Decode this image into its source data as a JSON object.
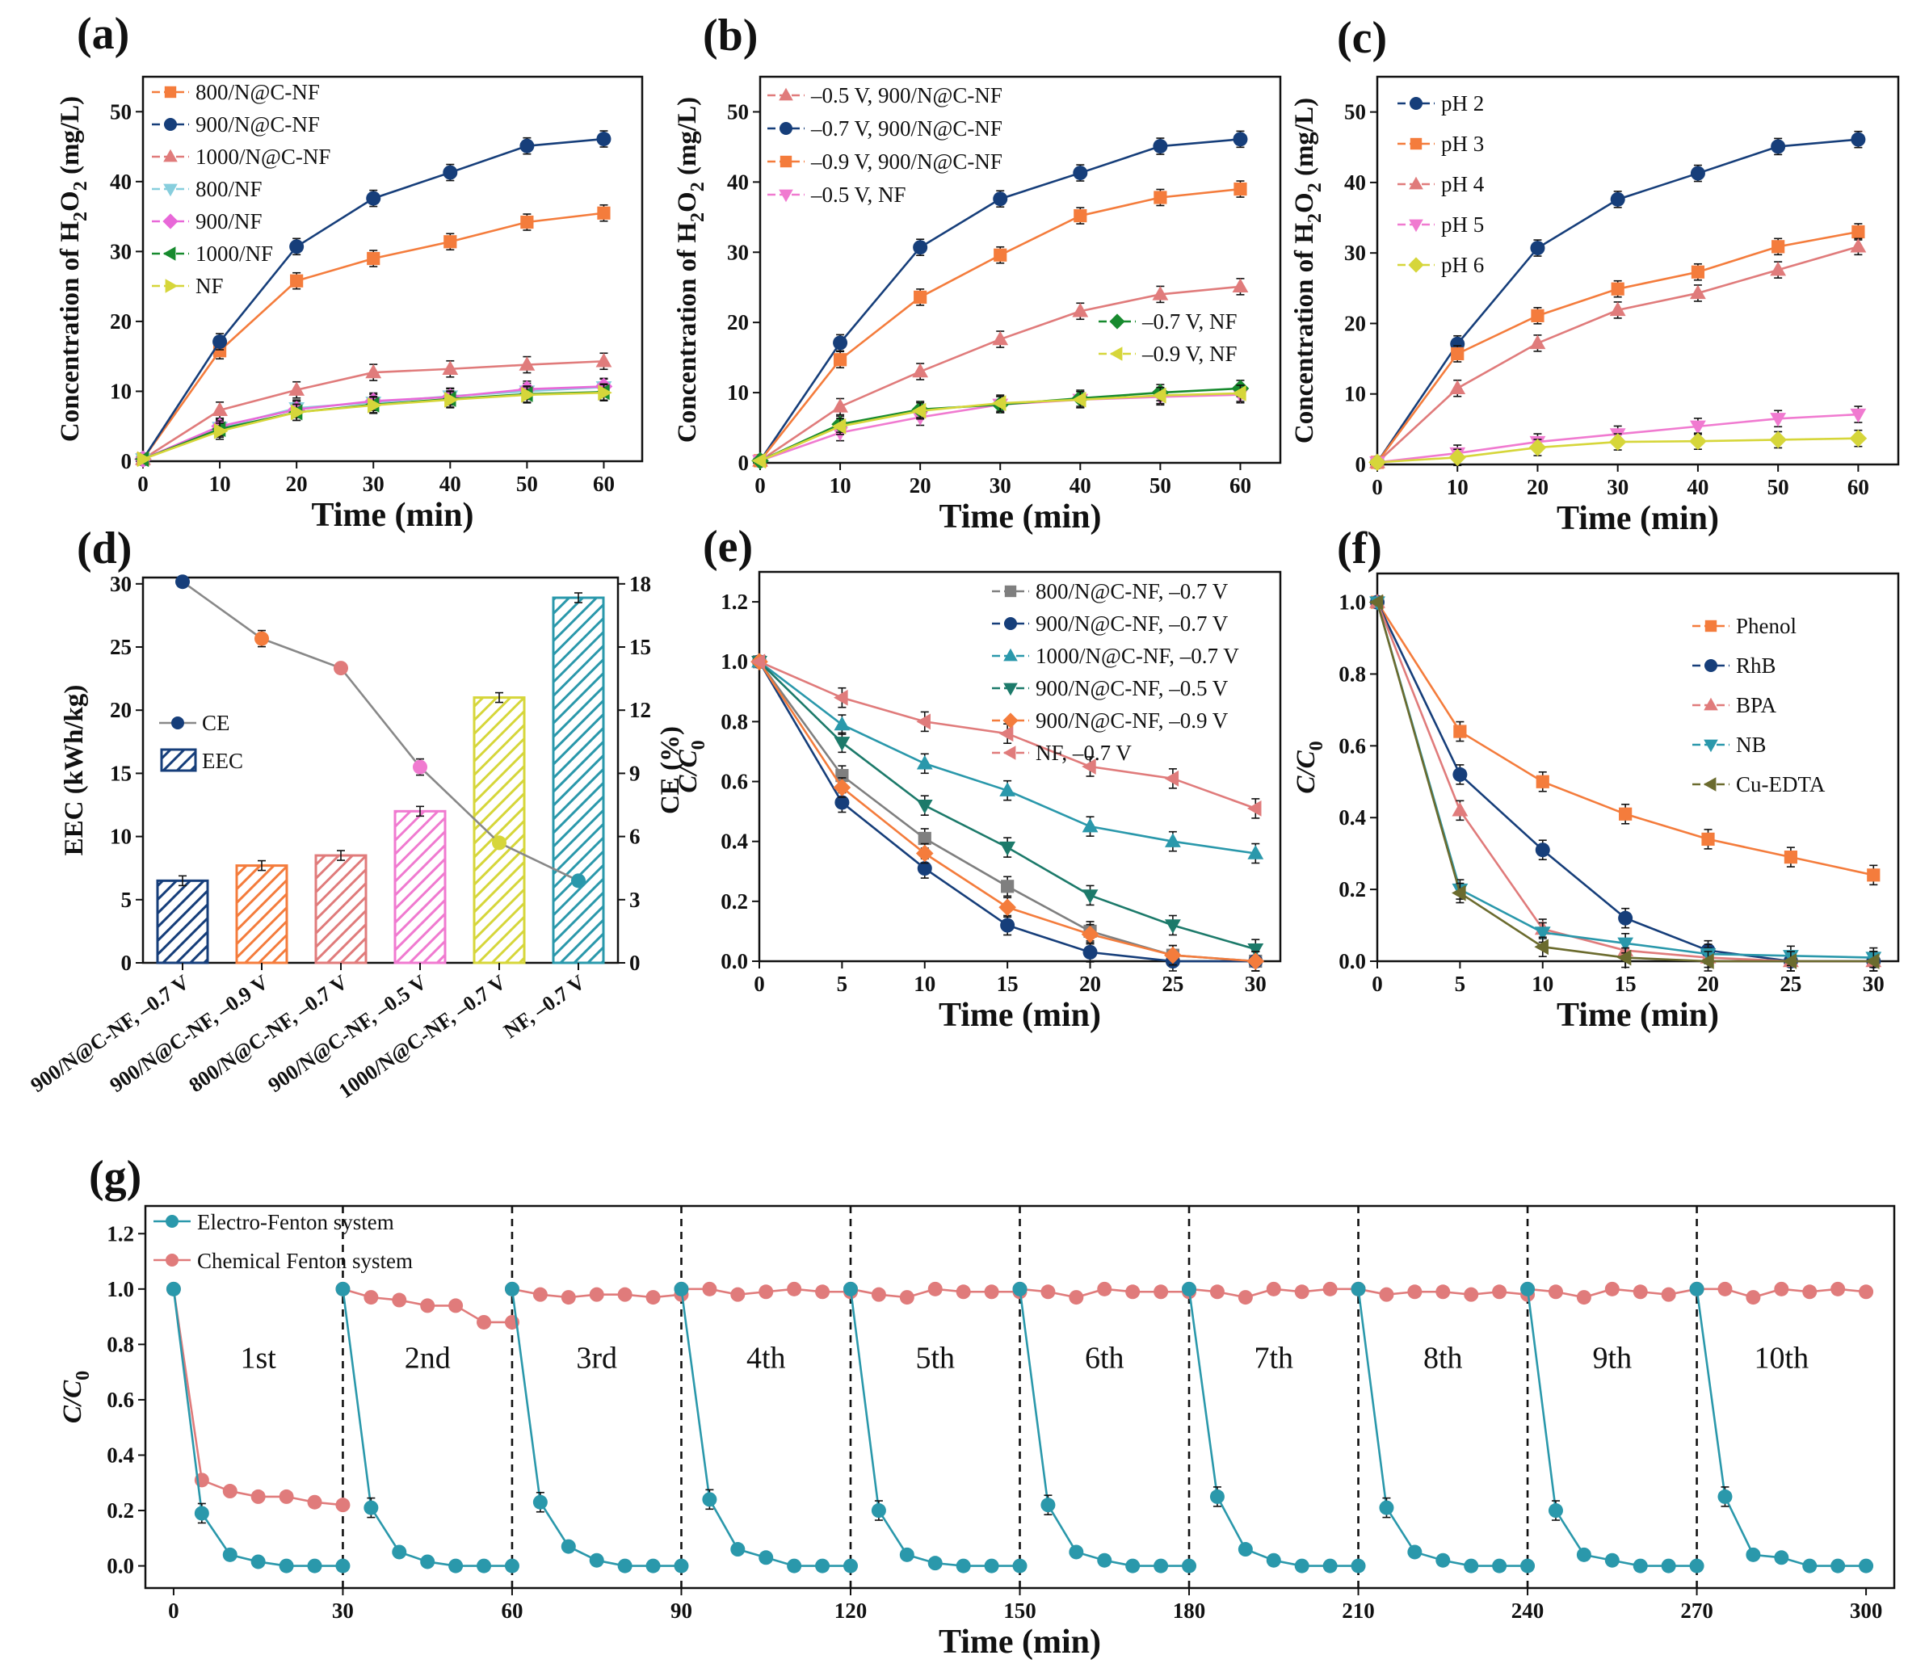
{
  "chart_data": [
    {
      "panel": "(a)",
      "type": "line",
      "xlabel": "Time (min)",
      "ylabel": "Concentration of H2O2 (mg/L)",
      "xlim": [
        0,
        65
      ],
      "ylim": [
        0,
        55
      ],
      "xticks": [
        0,
        10,
        20,
        30,
        40,
        50,
        60
      ],
      "yticks": [
        0,
        10,
        20,
        30,
        40,
        50
      ],
      "x": [
        0,
        10,
        20,
        30,
        40,
        50,
        60
      ],
      "legend_position": "top-left",
      "series": [
        {
          "name": "800/N@C-NF",
          "color": "#f47c3c",
          "marker": "square",
          "values": [
            0.3,
            15.8,
            25.8,
            29.0,
            31.4,
            34.2,
            35.5
          ]
        },
        {
          "name": "900/N@C-NF",
          "color": "#163e7a",
          "marker": "circle",
          "values": [
            0.3,
            17.1,
            30.7,
            37.6,
            41.3,
            45.1,
            46.1
          ]
        },
        {
          "name": "1000/N@C-NF",
          "color": "#e07b7b",
          "marker": "triangle-up",
          "values": [
            0.3,
            7.3,
            10.2,
            12.7,
            13.2,
            13.8,
            14.3
          ]
        },
        {
          "name": "800/NF",
          "color": "#87cedd",
          "marker": "triangle-down",
          "values": [
            0.3,
            4.8,
            7.6,
            8.4,
            9.3,
            10.0,
            10.6
          ]
        },
        {
          "name": "900/NF",
          "color": "#e868d8",
          "marker": "diamond",
          "values": [
            0.3,
            5.0,
            7.4,
            8.6,
            9.2,
            10.3,
            10.7
          ]
        },
        {
          "name": "1000/NF",
          "color": "#178a2e",
          "marker": "triangle-left",
          "values": [
            0.3,
            4.6,
            7.0,
            8.1,
            8.9,
            9.6,
            9.9
          ]
        },
        {
          "name": "NF",
          "color": "#d6d63a",
          "marker": "triangle-right",
          "values": [
            0.3,
            4.3,
            7.0,
            8.0,
            8.8,
            9.5,
            9.8
          ]
        }
      ]
    },
    {
      "panel": "(b)",
      "type": "line",
      "xlabel": "Time (min)",
      "ylabel": "Concentration of H2O2 (mg/L)",
      "xlim": [
        0,
        65
      ],
      "ylim": [
        0,
        55
      ],
      "xticks": [
        0,
        10,
        20,
        30,
        40,
        50,
        60
      ],
      "yticks": [
        0,
        10,
        20,
        30,
        40,
        50
      ],
      "x": [
        0,
        10,
        20,
        30,
        40,
        50,
        60
      ],
      "legend_position": "top-left",
      "series": [
        {
          "name": "–0.5 V, 900/N@C-NF",
          "color": "#e07b7b",
          "marker": "triangle-up",
          "values": [
            0.3,
            8.0,
            13.0,
            17.6,
            21.6,
            24.0,
            25.1
          ]
        },
        {
          "name": "–0.7 V, 900/N@C-NF",
          "color": "#163e7a",
          "marker": "circle",
          "values": [
            0.3,
            17.1,
            30.7,
            37.6,
            41.3,
            45.1,
            46.1
          ]
        },
        {
          "name": "–0.9 V, 900/N@C-NF",
          "color": "#f47c3c",
          "marker": "square",
          "values": [
            0.3,
            14.7,
            23.6,
            29.6,
            35.2,
            37.8,
            39.0
          ]
        },
        {
          "name": "–0.5 V, NF",
          "color": "#f07ad0",
          "marker": "triangle-down",
          "values": [
            0.3,
            4.3,
            6.5,
            8.3,
            9.0,
            9.4,
            9.7
          ]
        },
        {
          "name": "–0.7 V, NF",
          "color": "#178a2e",
          "marker": "diamond",
          "values": [
            0.3,
            5.5,
            7.6,
            8.3,
            9.2,
            10.0,
            10.6
          ]
        },
        {
          "name": "–0.9 V, NF",
          "color": "#d6d63a",
          "marker": "triangle-left",
          "values": [
            0.3,
            5.2,
            7.4,
            8.5,
            9.0,
            9.6,
            9.9
          ]
        }
      ]
    },
    {
      "panel": "(c)",
      "type": "line",
      "xlabel": "Time (min)",
      "ylabel": "Concentration of H2O2 (mg/L)",
      "xlim": [
        0,
        65
      ],
      "ylim": [
        0,
        55
      ],
      "xticks": [
        0,
        10,
        20,
        30,
        40,
        50,
        60
      ],
      "yticks": [
        0,
        10,
        20,
        30,
        40,
        50
      ],
      "x": [
        0,
        10,
        20,
        30,
        40,
        50,
        60
      ],
      "legend_position": "top-left",
      "series": [
        {
          "name": "pH 2",
          "color": "#163e7a",
          "marker": "circle",
          "values": [
            0.3,
            17.1,
            30.7,
            37.6,
            41.3,
            45.1,
            46.1
          ]
        },
        {
          "name": "pH 3",
          "color": "#f47c3c",
          "marker": "square",
          "values": [
            0.3,
            15.7,
            21.1,
            24.9,
            27.3,
            30.9,
            33.0
          ]
        },
        {
          "name": "pH 4",
          "color": "#e07b7b",
          "marker": "triangle-up",
          "values": [
            0.3,
            10.8,
            17.2,
            21.9,
            24.3,
            27.6,
            30.9
          ]
        },
        {
          "name": "pH 5",
          "color": "#f07ad0",
          "marker": "triangle-down",
          "values": [
            0.3,
            1.6,
            3.2,
            4.3,
            5.4,
            6.5,
            7.1
          ]
        },
        {
          "name": "pH 6",
          "color": "#d6d63a",
          "marker": "diamond",
          "values": [
            0.3,
            1.0,
            2.4,
            3.2,
            3.3,
            3.5,
            3.7
          ]
        }
      ]
    },
    {
      "panel": "(d)",
      "type": "bar",
      "ylabel": "EEC (kWh/kg)",
      "y2label": "CE (%)",
      "ylim": [
        0,
        30.5
      ],
      "y2lim": [
        0,
        18.3
      ],
      "yticks": [
        0,
        5,
        10,
        15,
        20,
        25,
        30
      ],
      "y2ticks": [
        0,
        3,
        6,
        9,
        12,
        15,
        18
      ],
      "legend_position": "left",
      "categories": [
        "900/N@C-NF, –0.7 V",
        "900/N@C-NF, –0.9 V",
        "800/N@C-NF, –0.7 V",
        "900/N@C-NF, –0.5 V",
        "1000/N@C-NF, –0.7 V",
        "NF, –0.7 V"
      ],
      "bar_colors": [
        "#163e7a",
        "#f47c3c",
        "#e07b7b",
        "#f07ad0",
        "#d6d63a",
        "#2a98ab"
      ],
      "series": [
        {
          "name": "EEC",
          "axis": "left",
          "values": [
            6.5,
            7.7,
            8.5,
            12.0,
            21.0,
            28.9
          ]
        },
        {
          "name": "CE",
          "axis": "right",
          "line_color": "#888888",
          "values": [
            18.1,
            15.4,
            14.0,
            9.3,
            5.7,
            3.9
          ]
        }
      ]
    },
    {
      "panel": "(e)",
      "type": "line",
      "xlabel": "Time (min)",
      "ylabel": "C/C0",
      "xlim": [
        0,
        31.5
      ],
      "ylim": [
        0,
        1.3
      ],
      "xticks": [
        0,
        5,
        10,
        15,
        20,
        25,
        30
      ],
      "yticks": [
        0.0,
        0.2,
        0.4,
        0.6,
        0.8,
        1.0,
        1.2
      ],
      "x": [
        0,
        5,
        10,
        15,
        20,
        25,
        30
      ],
      "legend_position": "top-right",
      "series": [
        {
          "name": "800/N@C-NF, –0.7 V",
          "color": "#7f7f7f",
          "marker": "square",
          "values": [
            1.0,
            0.62,
            0.41,
            0.25,
            0.1,
            0.02,
            0.0
          ]
        },
        {
          "name": "900/N@C-NF, –0.7 V",
          "color": "#163e7a",
          "marker": "circle",
          "values": [
            1.0,
            0.53,
            0.31,
            0.12,
            0.03,
            0.0,
            0.0
          ]
        },
        {
          "name": "1000/N@C-NF, –0.7 V",
          "color": "#2a98ab",
          "marker": "triangle-up",
          "values": [
            1.0,
            0.79,
            0.66,
            0.57,
            0.45,
            0.4,
            0.36
          ]
        },
        {
          "name": "900/N@C-NF, –0.5 V",
          "color": "#1c7a6a",
          "marker": "triangle-down",
          "values": [
            1.0,
            0.73,
            0.52,
            0.38,
            0.22,
            0.12,
            0.04
          ]
        },
        {
          "name": "900/N@C-NF, –0.9 V",
          "color": "#f47c3c",
          "marker": "diamond",
          "values": [
            1.0,
            0.58,
            0.36,
            0.18,
            0.09,
            0.02,
            0.0
          ]
        },
        {
          "name": "NF, –0.7 V",
          "color": "#e07b7b",
          "marker": "triangle-left",
          "values": [
            1.0,
            0.88,
            0.8,
            0.76,
            0.65,
            0.61,
            0.51
          ]
        }
      ]
    },
    {
      "panel": "(f)",
      "type": "line",
      "xlabel": "Time (min)",
      "ylabel": "C/C0",
      "xlim": [
        0,
        31.5
      ],
      "ylim": [
        0,
        1.08
      ],
      "xticks": [
        0,
        5,
        10,
        15,
        20,
        25,
        30
      ],
      "yticks": [
        0.0,
        0.2,
        0.4,
        0.6,
        0.8,
        1.0
      ],
      "x": [
        0,
        5,
        10,
        15,
        20,
        25,
        30
      ],
      "legend_position": "top-right",
      "series": [
        {
          "name": "Phenol",
          "color": "#f47c3c",
          "marker": "square",
          "values": [
            1.0,
            0.64,
            0.5,
            0.41,
            0.34,
            0.29,
            0.24
          ]
        },
        {
          "name": "RhB",
          "color": "#163e7a",
          "marker": "circle",
          "values": [
            1.0,
            0.52,
            0.31,
            0.12,
            0.03,
            0.0,
            0.0
          ]
        },
        {
          "name": "BPA",
          "color": "#e07b7b",
          "marker": "triangle-up",
          "values": [
            1.0,
            0.42,
            0.09,
            0.03,
            0.01,
            0.0,
            0.0
          ]
        },
        {
          "name": "NB",
          "color": "#2a98ab",
          "marker": "triangle-down",
          "values": [
            1.0,
            0.2,
            0.08,
            0.05,
            0.02,
            0.015,
            0.01
          ]
        },
        {
          "name": "Cu-EDTA",
          "color": "#6b6b2e",
          "marker": "triangle-left",
          "values": [
            1.0,
            0.19,
            0.04,
            0.01,
            0.0,
            0.0,
            0.0
          ]
        }
      ]
    },
    {
      "panel": "(g)",
      "type": "line",
      "xlabel": "Time (min)",
      "ylabel": "C/C0",
      "xlim": [
        -5,
        305
      ],
      "ylim": [
        -0.08,
        1.3
      ],
      "xticks": [
        0,
        30,
        60,
        90,
        120,
        150,
        180,
        210,
        240,
        270,
        300
      ],
      "yticks": [
        0.0,
        0.2,
        0.4,
        0.6,
        0.8,
        1.0,
        1.2
      ],
      "legend_position": "top-left",
      "cycle_boundaries": [
        30,
        60,
        90,
        120,
        150,
        180,
        210,
        240,
        270
      ],
      "cycle_labels": [
        "1st",
        "2nd",
        "3rd",
        "4th",
        "5th",
        "6th",
        "7th",
        "8th",
        "9th",
        "10th"
      ],
      "cycle_points": [
        0,
        5,
        10,
        15,
        20,
        25,
        30
      ],
      "series": [
        {
          "name": "Electro-Fenton system",
          "color": "#2a98ab",
          "cycles": [
            [
              1.0,
              0.19,
              0.04,
              0.015,
              0.0,
              0.0,
              0.0
            ],
            [
              1.0,
              0.21,
              0.05,
              0.015,
              0.0,
              0.0,
              0.0
            ],
            [
              1.0,
              0.23,
              0.07,
              0.02,
              0.0,
              0.0,
              0.0
            ],
            [
              1.0,
              0.24,
              0.06,
              0.03,
              0.0,
              0.0,
              0.0
            ],
            [
              1.0,
              0.2,
              0.04,
              0.01,
              0.0,
              0.0,
              0.0
            ],
            [
              1.0,
              0.22,
              0.05,
              0.02,
              0.0,
              0.0,
              0.0
            ],
            [
              1.0,
              0.25,
              0.06,
              0.02,
              0.0,
              0.0,
              0.0
            ],
            [
              1.0,
              0.21,
              0.05,
              0.02,
              0.0,
              0.0,
              0.0
            ],
            [
              1.0,
              0.2,
              0.04,
              0.02,
              0.0,
              0.0,
              0.0
            ],
            [
              1.0,
              0.25,
              0.04,
              0.03,
              0.0,
              0.0,
              0.0
            ]
          ]
        },
        {
          "name": "Chemical Fenton system",
          "color": "#e07b7b",
          "cycles": [
            [
              1.0,
              0.31,
              0.27,
              0.25,
              0.25,
              0.23,
              0.22
            ],
            [
              1.0,
              0.97,
              0.96,
              0.94,
              0.94,
              0.88,
              0.88
            ],
            [
              1.0,
              0.98,
              0.97,
              0.98,
              0.98,
              0.97,
              0.98
            ],
            [
              1.0,
              1.0,
              0.98,
              0.99,
              1.0,
              0.99,
              0.99
            ],
            [
              1.0,
              0.98,
              0.97,
              1.0,
              0.99,
              0.99,
              0.99
            ],
            [
              1.0,
              0.99,
              0.97,
              1.0,
              0.99,
              0.99,
              0.99
            ],
            [
              1.0,
              0.99,
              0.97,
              1.0,
              0.99,
              1.0,
              1.0
            ],
            [
              1.0,
              0.98,
              0.99,
              0.99,
              0.98,
              0.99,
              0.98
            ],
            [
              1.0,
              0.99,
              0.97,
              1.0,
              0.99,
              0.98,
              1.0
            ],
            [
              1.0,
              1.0,
              0.97,
              1.0,
              0.99,
              1.0,
              0.99
            ]
          ]
        }
      ]
    }
  ]
}
